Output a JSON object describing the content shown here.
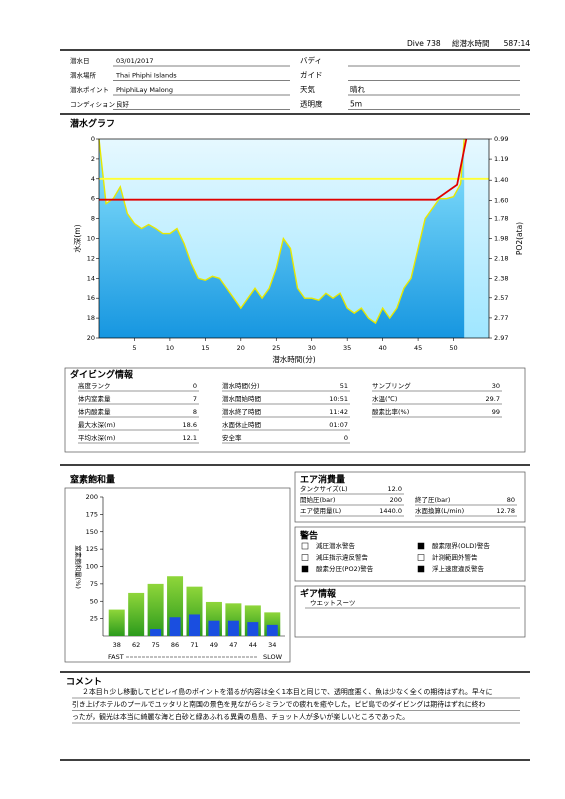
{
  "header": {
    "dive": "Dive 738",
    "total_time_label": "総潜水時間",
    "total_time": "587:14"
  },
  "info_left": [
    {
      "label": "潜水日",
      "value": "03/01/2017"
    },
    {
      "label": "潜水場所",
      "value": "Thai Phiphi Islands"
    },
    {
      "label": "潜水ポイント",
      "value": "PhiphiLay Malong"
    },
    {
      "label": "コンディション",
      "value": "良好"
    }
  ],
  "info_right": [
    {
      "label": "バディ"
    },
    {
      "label": "ガイド"
    },
    {
      "label": "天気",
      "value": "晴れ"
    },
    {
      "label": "透明度",
      "value": "5m"
    }
  ],
  "graph_title": "潜水グラフ",
  "chart_data": [
    {
      "type": "line",
      "xlabel": "潜水時間(分)",
      "ylabel": "水深(m)",
      "y2label": "PO2(ata)",
      "xlim": [
        0,
        55
      ],
      "xticks": [
        5,
        10,
        15,
        20,
        25,
        30,
        35,
        40,
        45,
        50
      ],
      "ylim": [
        0,
        20
      ],
      "yticks": [
        0,
        2,
        4,
        6,
        8,
        10,
        12,
        14,
        16,
        18,
        20
      ],
      "y_inverted": true,
      "y2lim": [
        0.99,
        2.97
      ],
      "y2ticks": [
        0.99,
        1.19,
        {
          "value": 1.4,
          "label": "1.40"
        },
        {
          "value": 1.6,
          "label": "1.60"
        },
        1.78,
        1.98,
        2.18,
        2.38,
        2.57,
        2.77,
        2.97
      ],
      "series": [
        {
          "color": "#e8e800",
          "fill": true,
          "x": [
            0,
            1,
            2,
            3,
            4,
            5,
            6,
            7,
            8,
            9,
            10,
            11,
            12,
            13,
            14,
            15,
            16,
            17,
            18,
            19,
            20,
            21,
            22,
            23,
            24,
            25,
            26,
            27,
            28,
            29,
            30,
            31,
            32,
            33,
            34,
            35,
            36,
            37,
            38,
            39,
            40,
            41,
            42,
            43,
            44,
            45,
            46,
            47,
            48,
            49,
            50,
            51,
            51.5
          ],
          "values": [
            0,
            6.5,
            6,
            4.8,
            7.5,
            8.5,
            9,
            8.6,
            9,
            9.5,
            9.5,
            9,
            10.5,
            12.5,
            14,
            14.2,
            13.8,
            14,
            15,
            16,
            17,
            16,
            15,
            16,
            15,
            13,
            10,
            11,
            15,
            16,
            16,
            16.2,
            15.5,
            16,
            15.5,
            17,
            17.5,
            17,
            18,
            18.5,
            17,
            18,
            17,
            15,
            14,
            11,
            8,
            7,
            6,
            6,
            5.8,
            4.5,
            0
          ]
        },
        {
          "color": "#ffff33",
          "fill": false,
          "x": [
            0,
            55
          ],
          "values": [
            4,
            4
          ]
        },
        {
          "color": "#e00000",
          "fill": false,
          "x": [
            0,
            47.5,
            50.5,
            51.8
          ],
          "values": [
            6.1,
            6.1,
            4.6,
            0
          ]
        }
      ]
    },
    {
      "type": "bar",
      "title": "窒素飽和量",
      "ylabel": "窒素飽和量(%)",
      "ylim": [
        0,
        200
      ],
      "yticks": [
        25,
        50,
        75,
        100,
        125,
        150,
        175,
        200
      ],
      "xlabel_left": "FAST",
      "xlabel_right": "SLOW",
      "series": [
        {
          "color": "#4cbf2a",
          "values": [
            38,
            62,
            75,
            86,
            71,
            49,
            47,
            44,
            34
          ]
        },
        {
          "color": "#1a4ee0",
          "values": [
            0,
            0,
            10,
            27,
            31,
            22,
            22,
            20,
            16
          ]
        }
      ]
    }
  ],
  "dive_info": {
    "title": "ダイビング情報",
    "columns": [
      [
        {
          "label": "高度ランク",
          "value": 0
        },
        {
          "label": "体内窒素量",
          "value": 7
        },
        {
          "label": "体内酸素量",
          "value": 8
        },
        {
          "label": "最大水深(m)",
          "value": 18.6
        },
        {
          "label": "平均水深(m)",
          "value": 12.1
        }
      ],
      [
        {
          "label": "潜水時間(分)",
          "value": 51
        },
        {
          "label": "潜水開始時間",
          "value": "10:51"
        },
        {
          "label": "潜水終了時間",
          "value": "11:42"
        },
        {
          "label": "水面休止時間",
          "value": "01:07"
        },
        {
          "label": "安全率",
          "value": 0
        }
      ],
      [
        {
          "label": "サンプリング",
          "value": 30
        },
        {
          "label": "水温(℃)",
          "value": 29.7
        },
        {
          "label": "酸素比率(%)",
          "value": 99
        }
      ]
    ]
  },
  "air": {
    "title": "エア消費量",
    "rows": [
      [
        {
          "label": "タンクサイズ(L)",
          "value": "12.0"
        }
      ],
      [
        {
          "label": "開始圧(bar)",
          "value": 200
        },
        {
          "label": "終了圧(bar)",
          "value": 80
        }
      ],
      [
        {
          "label": "エア使用量(L)",
          "value": "1440.0"
        },
        {
          "label": "水面換算(L/min)",
          "value": 12.78
        }
      ]
    ]
  },
  "warnings": {
    "title": "警告",
    "items": [
      {
        "label": "減圧潜水警告",
        "checked": false
      },
      {
        "label": "酸素限界(OLD)警告",
        "checked": true
      },
      {
        "label": "減圧指示違反警告",
        "checked": false
      },
      {
        "label": "計測範囲外警告",
        "checked": false
      },
      {
        "label": "酸素分圧(PO2)警告",
        "checked": true
      },
      {
        "label": "浮上速度違反警告",
        "checked": true
      }
    ]
  },
  "gear": {
    "title": "ギア情報",
    "items": [
      "ウエットスーツ"
    ]
  },
  "comment": {
    "title": "コメント",
    "lines": [
      "２本目ｈ少し移動してピピレイ島のポイントを潜るが内容は全く1本目と同じで、透明度悪く、魚は少なく全くの期待はずれ。早々に",
      "引き上げホテルのプールでユッタリと南国の景色を見ながらシミランでの疲れを癒やした。ピピ島でのダイビングは期待はずれに終わ",
      "ったが，観光は本当に綺麗な海と白砂と緑あふれる異貴の島島、チョット人が多いが楽しいところであった。"
    ]
  }
}
